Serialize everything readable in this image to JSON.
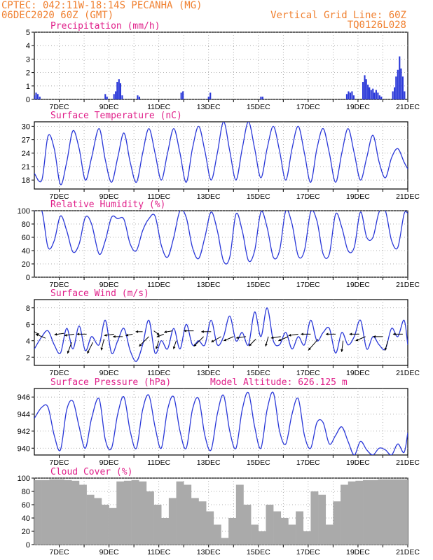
{
  "header": {
    "line1_left": "CPTEC:   042:11W-18:14S   PECANHA (MG)",
    "line2_left": "06DEC2020 60Z (GMT)",
    "line2_right": "Vertical Grid Line: 60Z",
    "line3_right": "TQ0126L028"
  },
  "x_tick_labels": [
    "7DEC",
    "9DEC",
    "11DEC",
    "13DEC",
    "15DEC",
    "17DEC",
    "19DEC",
    "21DEC"
  ],
  "colors": {
    "header": "#f08030",
    "title": "#e0208a",
    "series": "#2a38d8",
    "bars": "#2a38d8",
    "cloud": "#aaaaaa",
    "grid": "#999999"
  },
  "chart_data": [
    {
      "id": "precip",
      "type": "bar",
      "title": "Precipitation (mm/h)",
      "xlabel": "",
      "ylabel": "",
      "x_unit": "days since 06DEC2020 06Z",
      "ylim": [
        0,
        5
      ],
      "yticks": [
        0,
        1,
        2,
        3,
        4,
        5
      ],
      "x": [
        0.0,
        0.07,
        0.14,
        0.22,
        2.85,
        2.92,
        3.2,
        3.27,
        3.33,
        3.4,
        3.46,
        3.53,
        4.15,
        4.22,
        5.9,
        5.97,
        7.0,
        7.07,
        9.1,
        9.17,
        12.55,
        12.62,
        12.69,
        12.76,
        12.83,
        13.2,
        13.27,
        13.33,
        13.4,
        13.46,
        13.53,
        13.6,
        13.66,
        13.73,
        13.8,
        13.87,
        13.94,
        14.4,
        14.47,
        14.53,
        14.6,
        14.67,
        14.73,
        14.8,
        14.87
      ],
      "values": [
        0.3,
        0.5,
        0.4,
        0.2,
        0.4,
        0.2,
        0.4,
        0.6,
        1.3,
        1.5,
        1.2,
        0.3,
        0.3,
        0.2,
        0.5,
        0.6,
        0.2,
        0.5,
        0.2,
        0.2,
        0.4,
        0.6,
        0.5,
        0.6,
        0.3,
        1.3,
        1.8,
        1.5,
        1.1,
        0.9,
        0.7,
        0.8,
        0.5,
        0.7,
        0.5,
        0.3,
        0.2,
        0.6,
        0.9,
        1.7,
        2.2,
        3.2,
        2.3,
        1.7,
        0.6
      ]
    },
    {
      "id": "temp",
      "type": "line",
      "title": "Surface Temperature (nC)",
      "ylim": [
        16,
        31
      ],
      "yticks": [
        18,
        21,
        24,
        27,
        30
      ],
      "x": [
        0.0,
        0.3,
        0.55,
        0.8,
        1.05,
        1.3,
        1.55,
        1.8,
        2.05,
        2.3,
        2.6,
        2.85,
        3.1,
        3.35,
        3.6,
        3.85,
        4.1,
        4.35,
        4.6,
        4.85,
        5.1,
        5.35,
        5.6,
        5.85,
        6.1,
        6.35,
        6.6,
        6.85,
        7.1,
        7.35,
        7.6,
        7.85,
        8.1,
        8.35,
        8.6,
        8.85,
        9.1,
        9.35,
        9.6,
        9.85,
        10.1,
        10.35,
        10.6,
        10.85,
        11.1,
        11.35,
        11.6,
        11.85,
        12.1,
        12.35,
        12.6,
        12.85,
        13.1,
        13.35,
        13.6,
        13.85,
        14.1,
        14.35,
        14.6,
        14.85,
        15.0
      ],
      "series": [
        {
          "values": [
            19.5,
            18.0,
            27.8,
            25.0,
            17.0,
            22.0,
            29.0,
            25.0,
            18.0,
            23.0,
            29.5,
            22.5,
            17.5,
            23.0,
            28.5,
            22.0,
            17.5,
            24.0,
            29.5,
            24.0,
            18.0,
            24.0,
            29.5,
            24.0,
            17.5,
            25.0,
            30.0,
            24.5,
            18.0,
            24.0,
            31.0,
            24.5,
            18.0,
            25.0,
            31.0,
            25.0,
            18.5,
            25.0,
            30.0,
            24.5,
            18.0,
            25.0,
            30.0,
            24.0,
            17.5,
            25.0,
            29.5,
            24.0,
            17.5,
            24.0,
            29.5,
            24.0,
            18.0,
            23.0,
            28.0,
            22.0,
            18.5,
            23.0,
            25.0,
            22.0,
            20.5
          ]
        }
      ]
    },
    {
      "id": "rh",
      "type": "line",
      "title": "Relative Humidity (%)",
      "ylim": [
        0,
        100
      ],
      "yticks": [
        0,
        20,
        40,
        60,
        80,
        100
      ],
      "x": [
        0.0,
        0.3,
        0.55,
        0.8,
        1.05,
        1.3,
        1.55,
        1.8,
        2.05,
        2.3,
        2.6,
        2.85,
        3.1,
        3.35,
        3.6,
        3.85,
        4.1,
        4.35,
        4.6,
        4.85,
        5.1,
        5.35,
        5.6,
        5.85,
        6.1,
        6.35,
        6.6,
        6.85,
        7.1,
        7.35,
        7.6,
        7.85,
        8.1,
        8.35,
        8.6,
        8.85,
        9.1,
        9.35,
        9.6,
        9.85,
        10.1,
        10.35,
        10.6,
        10.85,
        11.1,
        11.35,
        11.6,
        11.85,
        12.1,
        12.35,
        12.6,
        12.85,
        13.1,
        13.35,
        13.6,
        13.85,
        14.1,
        14.35,
        14.6,
        14.85,
        15.0
      ],
      "series": [
        {
          "values": [
            100,
            100,
            45,
            55,
            92,
            70,
            38,
            50,
            90,
            80,
            35,
            55,
            90,
            88,
            87,
            50,
            40,
            70,
            88,
            92,
            48,
            30,
            60,
            100,
            90,
            45,
            28,
            60,
            98,
            70,
            24,
            30,
            95,
            70,
            25,
            40,
            98,
            75,
            30,
            40,
            100,
            80,
            32,
            40,
            98,
            85,
            35,
            35,
            95,
            75,
            40,
            45,
            98,
            60,
            60,
            98,
            100,
            55,
            45,
            95,
            96
          ]
        }
      ]
    },
    {
      "id": "wind",
      "type": "line",
      "title": "Surface Wind (m/s)",
      "ylim": [
        1,
        9
      ],
      "yticks": [
        2,
        4,
        6,
        8
      ],
      "x": [
        0.0,
        0.3,
        0.55,
        0.8,
        1.05,
        1.3,
        1.55,
        1.8,
        2.05,
        2.3,
        2.6,
        2.85,
        3.1,
        3.35,
        3.6,
        3.85,
        4.1,
        4.35,
        4.6,
        4.85,
        5.1,
        5.35,
        5.6,
        5.85,
        6.1,
        6.35,
        6.6,
        6.85,
        7.1,
        7.35,
        7.6,
        7.85,
        8.1,
        8.35,
        8.6,
        8.85,
        9.1,
        9.35,
        9.6,
        9.85,
        10.1,
        10.35,
        10.6,
        10.85,
        11.1,
        11.35,
        11.6,
        11.85,
        12.1,
        12.35,
        12.6,
        12.85,
        13.1,
        13.35,
        13.6,
        13.85,
        14.1,
        14.35,
        14.6,
        14.85,
        15.0
      ],
      "series": [
        {
          "values": [
            3.0,
            4.5,
            5.2,
            3.5,
            2.5,
            5.5,
            3.0,
            5.8,
            2.8,
            4.5,
            3.5,
            6.5,
            2.5,
            4.0,
            5.5,
            2.8,
            1.5,
            3.5,
            6.5,
            2.5,
            4.0,
            3.0,
            5.5,
            3.0,
            6.0,
            3.5,
            4.0,
            3.5,
            6.5,
            3.5,
            4.5,
            7.0,
            4.0,
            5.0,
            3.5,
            7.5,
            4.5,
            8.0,
            4.0,
            3.5,
            5.0,
            3.0,
            4.5,
            3.5,
            6.5,
            4.0,
            5.0,
            5.5,
            2.5,
            5.0,
            3.5,
            4.5,
            6.5,
            3.0,
            4.5,
            3.5,
            3.0,
            5.5,
            4.5,
            6.5,
            3.5
          ]
        }
      ],
      "arrows": [
        {
          "x": 0.2,
          "y": 4.8,
          "dx": -10,
          "dy": -4
        },
        {
          "x": 0.45,
          "y": 4.3,
          "dx": -14,
          "dy": -6
        },
        {
          "x": 1.2,
          "y": 4.9,
          "dx": -14,
          "dy": 2
        },
        {
          "x": 1.5,
          "y": 3.8,
          "dx": -6,
          "dy": 16
        },
        {
          "x": 1.6,
          "y": 4.8,
          "dx": -14,
          "dy": 2
        },
        {
          "x": 2.1,
          "y": 4.8,
          "dx": -14,
          "dy": 0
        },
        {
          "x": 2.35,
          "y": 3.8,
          "dx": -8,
          "dy": 16
        },
        {
          "x": 2.8,
          "y": 4.2,
          "dx": -4,
          "dy": 16
        },
        {
          "x": 3.2,
          "y": 4.8,
          "dx": -14,
          "dy": 2
        },
        {
          "x": 3.55,
          "y": 4.5,
          "dx": -14,
          "dy": 0
        },
        {
          "x": 3.95,
          "y": 4.8,
          "dx": -10,
          "dy": 2
        },
        {
          "x": 4.35,
          "y": 5.1,
          "dx": -10,
          "dy": 0
        },
        {
          "x": 4.6,
          "y": 4.5,
          "dx": -14,
          "dy": 14
        },
        {
          "x": 4.8,
          "y": 5.2,
          "dx": 8,
          "dy": 6
        },
        {
          "x": 5.0,
          "y": 4.0,
          "dx": -4,
          "dy": 12
        },
        {
          "x": 5.2,
          "y": 4.8,
          "dx": -10,
          "dy": 4
        },
        {
          "x": 5.55,
          "y": 5.2,
          "dx": -12,
          "dy": 2
        },
        {
          "x": 5.7,
          "y": 4.0,
          "dx": -4,
          "dy": 12
        },
        {
          "x": 6.4,
          "y": 5.2,
          "dx": -14,
          "dy": 0
        },
        {
          "x": 6.8,
          "y": 4.5,
          "dx": -14,
          "dy": 14
        },
        {
          "x": 7.1,
          "y": 5.1,
          "dx": -14,
          "dy": 0
        },
        {
          "x": 7.5,
          "y": 4.5,
          "dx": -14,
          "dy": 8
        },
        {
          "x": 8.0,
          "y": 4.5,
          "dx": -14,
          "dy": 6
        },
        {
          "x": 8.5,
          "y": 4.5,
          "dx": -14,
          "dy": 2
        },
        {
          "x": 8.9,
          "y": 4.2,
          "dx": -10,
          "dy": 10
        },
        {
          "x": 9.4,
          "y": 4.5,
          "dx": -4,
          "dy": 14
        },
        {
          "x": 9.9,
          "y": 4.5,
          "dx": -14,
          "dy": 2
        },
        {
          "x": 10.2,
          "y": 4.5,
          "dx": -14,
          "dy": 6
        },
        {
          "x": 10.6,
          "y": 4.8,
          "dx": -14,
          "dy": 2
        },
        {
          "x": 11.1,
          "y": 4.8,
          "dx": -14,
          "dy": 0
        },
        {
          "x": 11.4,
          "y": 4.2,
          "dx": -14,
          "dy": 16
        },
        {
          "x": 12.1,
          "y": 4.8,
          "dx": -14,
          "dy": 0
        },
        {
          "x": 12.4,
          "y": 4.0,
          "dx": -2,
          "dy": 16
        },
        {
          "x": 13.05,
          "y": 4.8,
          "dx": -14,
          "dy": 0
        },
        {
          "x": 13.3,
          "y": 4.5,
          "dx": -14,
          "dy": 6
        },
        {
          "x": 14.0,
          "y": 4.5,
          "dx": -14,
          "dy": 0
        },
        {
          "x": 14.2,
          "y": 4.0,
          "dx": -4,
          "dy": 14
        },
        {
          "x": 14.8,
          "y": 4.8,
          "dx": -14,
          "dy": 0
        }
      ]
    },
    {
      "id": "pres",
      "type": "line",
      "title": "Surface Pressure (hPa)",
      "annotation": "Model Altitude: 626.125 m",
      "ylim": [
        939.2,
        947.0
      ],
      "yticks": [
        940,
        942,
        944,
        946
      ],
      "x": [
        0.0,
        0.3,
        0.55,
        0.8,
        1.05,
        1.3,
        1.55,
        1.8,
        2.05,
        2.3,
        2.6,
        2.85,
        3.1,
        3.35,
        3.6,
        3.85,
        4.1,
        4.35,
        4.6,
        4.85,
        5.1,
        5.35,
        5.6,
        5.85,
        6.1,
        6.35,
        6.6,
        6.85,
        7.1,
        7.35,
        7.6,
        7.85,
        8.1,
        8.35,
        8.6,
        8.85,
        9.1,
        9.35,
        9.6,
        9.85,
        10.1,
        10.35,
        10.6,
        10.85,
        11.1,
        11.35,
        11.6,
        11.85,
        12.1,
        12.35,
        12.6,
        12.85,
        13.1,
        13.35,
        13.6,
        13.85,
        14.1,
        14.35,
        14.6,
        14.85,
        15.0
      ],
      "series": [
        {
          "values": [
            943.5,
            944.8,
            944.8,
            941.5,
            939.8,
            944.5,
            945.5,
            942.5,
            940.0,
            943.5,
            945.8,
            941.0,
            940.0,
            944.0,
            946.0,
            942.0,
            940.0,
            944.5,
            946.2,
            942.5,
            940.0,
            944.5,
            946.0,
            942.0,
            940.0,
            944.5,
            945.8,
            941.5,
            939.8,
            944.0,
            946.2,
            942.0,
            940.0,
            944.5,
            946.5,
            942.5,
            940.0,
            944.5,
            946.5,
            942.0,
            940.5,
            944.0,
            945.8,
            941.5,
            940.0,
            943.0,
            943.0,
            940.5,
            941.5,
            942.5,
            940.8,
            939.2,
            940.8,
            939.8,
            939.2,
            940.0,
            939.8,
            939.2,
            940.5,
            939.5,
            941.8
          ]
        }
      ]
    },
    {
      "id": "cloud",
      "type": "area",
      "title": "Cloud Cover (%)",
      "ylim": [
        0,
        100
      ],
      "yticks": [
        0,
        20,
        40,
        60,
        80,
        100
      ],
      "x": [
        0.0,
        0.3,
        0.6,
        0.9,
        1.2,
        1.5,
        1.8,
        2.1,
        2.4,
        2.7,
        3.0,
        3.3,
        3.6,
        3.9,
        4.2,
        4.5,
        4.8,
        5.1,
        5.4,
        5.7,
        6.0,
        6.3,
        6.6,
        6.9,
        7.2,
        7.5,
        7.8,
        8.1,
        8.4,
        8.7,
        9.0,
        9.3,
        9.6,
        9.9,
        10.2,
        10.5,
        10.8,
        11.1,
        11.4,
        11.7,
        12.0,
        12.3,
        12.6,
        12.9,
        13.2,
        13.5,
        13.8,
        14.1,
        14.4,
        14.7,
        15.0
      ],
      "values": [
        97,
        97,
        98,
        98,
        97,
        96,
        90,
        75,
        70,
        60,
        55,
        95,
        96,
        97,
        95,
        80,
        60,
        40,
        70,
        95,
        90,
        70,
        65,
        50,
        30,
        10,
        40,
        90,
        60,
        30,
        20,
        60,
        50,
        40,
        30,
        50,
        20,
        80,
        75,
        30,
        65,
        90,
        95,
        96,
        97,
        97,
        98,
        98,
        98,
        98,
        99
      ]
    }
  ]
}
